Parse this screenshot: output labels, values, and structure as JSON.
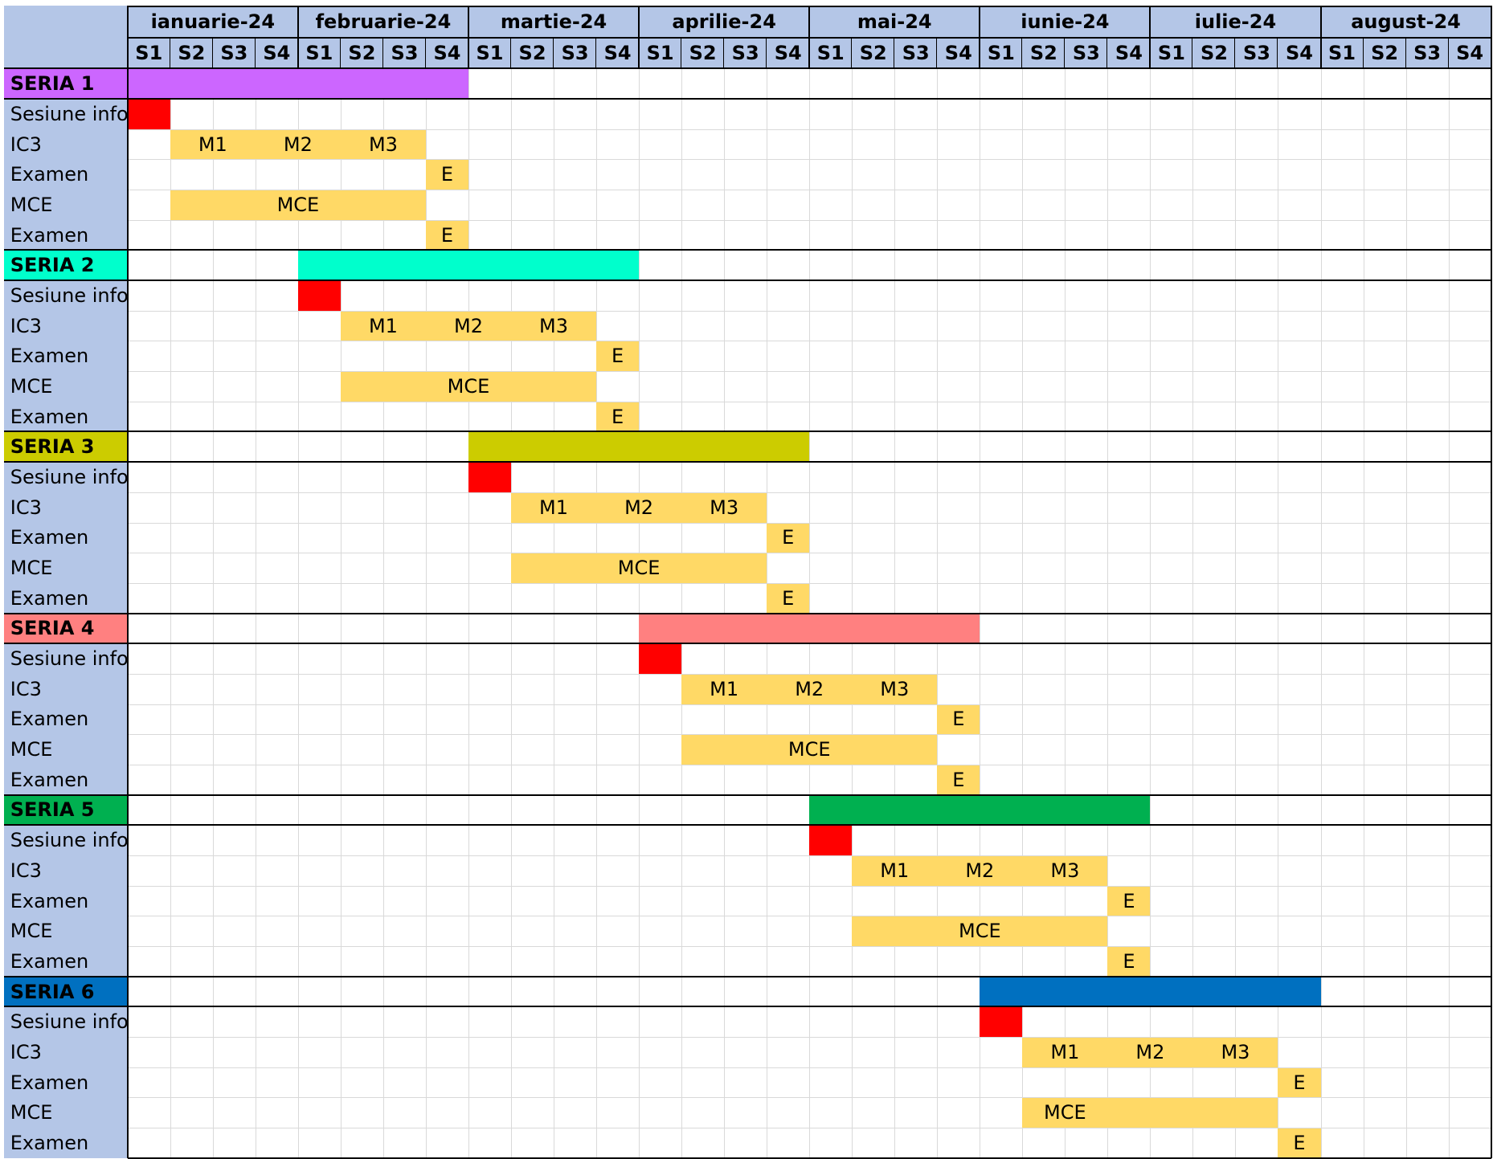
{
  "months": [
    "ianuarie-24",
    "februarie-24",
    "martie-24",
    "aprilie-24",
    "mai-24",
    "iunie-24",
    "iulie-24",
    "august-24"
  ],
  "weeks": [
    "S1",
    "S2",
    "S3",
    "S4"
  ],
  "colors": {
    "header": "#b4c6e7",
    "info_session": "#ff0000",
    "module": "#ffd966"
  },
  "series": [
    {
      "name": "SERIA 1",
      "color": "#cc66ff",
      "start_week": 1,
      "end_week": 8,
      "rows": [
        {
          "label": "Sesiune info",
          "type": "info",
          "start_week": 1,
          "end_week": 1,
          "marks": []
        },
        {
          "label": "IC3",
          "type": "module",
          "start_week": 2,
          "end_week": 7,
          "marks": [
            {
              "text": "M1",
              "week": 2.5
            },
            {
              "text": "M2",
              "week": 4.5
            },
            {
              "text": "M3",
              "week": 6.5
            }
          ]
        },
        {
          "label": "Examen",
          "type": "module",
          "start_week": 8,
          "end_week": 8,
          "marks": [
            {
              "text": "E",
              "week": 8
            }
          ]
        },
        {
          "label": "MCE",
          "type": "module",
          "start_week": 2,
          "end_week": 7,
          "marks": [
            {
              "text": "MCE",
              "week": 4.5
            }
          ]
        },
        {
          "label": "Examen",
          "type": "module",
          "start_week": 8,
          "end_week": 8,
          "marks": [
            {
              "text": "E",
              "week": 8
            }
          ]
        }
      ]
    },
    {
      "name": "SERIA 2",
      "color": "#00ffcc",
      "start_week": 5,
      "end_week": 12,
      "rows": [
        {
          "label": "Sesiune info",
          "type": "info",
          "start_week": 5,
          "end_week": 5,
          "marks": []
        },
        {
          "label": "IC3",
          "type": "module",
          "start_week": 6,
          "end_week": 11,
          "marks": [
            {
              "text": "M1",
              "week": 6.5
            },
            {
              "text": "M2",
              "week": 8.5
            },
            {
              "text": "M3",
              "week": 10.5
            }
          ]
        },
        {
          "label": "Examen",
          "type": "module",
          "start_week": 12,
          "end_week": 12,
          "marks": [
            {
              "text": "E",
              "week": 12
            }
          ]
        },
        {
          "label": "MCE",
          "type": "module",
          "start_week": 6,
          "end_week": 11,
          "marks": [
            {
              "text": "MCE",
              "week": 8.5
            }
          ]
        },
        {
          "label": "Examen",
          "type": "module",
          "start_week": 12,
          "end_week": 12,
          "marks": [
            {
              "text": "E",
              "week": 12
            }
          ]
        }
      ]
    },
    {
      "name": "SERIA 3",
      "color": "#cccc00",
      "start_week": 9,
      "end_week": 16,
      "rows": [
        {
          "label": "Sesiune info",
          "type": "info",
          "start_week": 9,
          "end_week": 9,
          "marks": []
        },
        {
          "label": "IC3",
          "type": "module",
          "start_week": 10,
          "end_week": 15,
          "marks": [
            {
              "text": "M1",
              "week": 10.5
            },
            {
              "text": "M2",
              "week": 12.5
            },
            {
              "text": "M3",
              "week": 14.5
            }
          ]
        },
        {
          "label": "Examen",
          "type": "module",
          "start_week": 16,
          "end_week": 16,
          "marks": [
            {
              "text": "E",
              "week": 16
            }
          ]
        },
        {
          "label": "MCE",
          "type": "module",
          "start_week": 10,
          "end_week": 15,
          "marks": [
            {
              "text": "MCE",
              "week": 12.5
            }
          ]
        },
        {
          "label": "Examen",
          "type": "module",
          "start_week": 16,
          "end_week": 16,
          "marks": [
            {
              "text": "E",
              "week": 16
            }
          ]
        }
      ]
    },
    {
      "name": "SERIA 4",
      "color": "#ff8080",
      "start_week": 13,
      "end_week": 20,
      "rows": [
        {
          "label": "Sesiune info",
          "type": "info",
          "start_week": 13,
          "end_week": 13,
          "marks": []
        },
        {
          "label": "IC3",
          "type": "module",
          "start_week": 14,
          "end_week": 19,
          "marks": [
            {
              "text": "M1",
              "week": 14.5
            },
            {
              "text": "M2",
              "week": 16.5
            },
            {
              "text": "M3",
              "week": 18.5
            }
          ]
        },
        {
          "label": "Examen",
          "type": "module",
          "start_week": 20,
          "end_week": 20,
          "marks": [
            {
              "text": "E",
              "week": 20
            }
          ]
        },
        {
          "label": "MCE",
          "type": "module",
          "start_week": 14,
          "end_week": 19,
          "marks": [
            {
              "text": "MCE",
              "week": 16.5
            }
          ]
        },
        {
          "label": "Examen",
          "type": "module",
          "start_week": 20,
          "end_week": 20,
          "marks": [
            {
              "text": "E",
              "week": 20
            }
          ]
        }
      ]
    },
    {
      "name": "SERIA 5",
      "color": "#00b050",
      "start_week": 17,
      "end_week": 24,
      "rows": [
        {
          "label": "Sesiune info",
          "type": "info",
          "start_week": 17,
          "end_week": 17,
          "marks": []
        },
        {
          "label": "IC3",
          "type": "module",
          "start_week": 18,
          "end_week": 23,
          "marks": [
            {
              "text": "M1",
              "week": 18.5
            },
            {
              "text": "M2",
              "week": 20.5
            },
            {
              "text": "M3",
              "week": 22.5
            }
          ]
        },
        {
          "label": "Examen",
          "type": "module",
          "start_week": 24,
          "end_week": 24,
          "marks": [
            {
              "text": "E",
              "week": 24
            }
          ]
        },
        {
          "label": "MCE",
          "type": "module",
          "start_week": 18,
          "end_week": 23,
          "marks": [
            {
              "text": "MCE",
              "week": 20.5
            }
          ]
        },
        {
          "label": "Examen",
          "type": "module",
          "start_week": 24,
          "end_week": 24,
          "marks": [
            {
              "text": "E",
              "week": 24
            }
          ]
        }
      ]
    },
    {
      "name": "SERIA 6",
      "color": "#0070c0",
      "start_week": 21,
      "end_week": 28,
      "rows": [
        {
          "label": "Sesiune info",
          "type": "info",
          "start_week": 21,
          "end_week": 21,
          "marks": []
        },
        {
          "label": "IC3",
          "type": "module",
          "start_week": 22,
          "end_week": 27,
          "marks": [
            {
              "text": "M1",
              "week": 22.5
            },
            {
              "text": "M2",
              "week": 24.5
            },
            {
              "text": "M3",
              "week": 26.5
            }
          ]
        },
        {
          "label": "Examen",
          "type": "module",
          "start_week": 28,
          "end_week": 28,
          "marks": [
            {
              "text": "E",
              "week": 28
            }
          ]
        },
        {
          "label": "MCE",
          "type": "module",
          "start_week": 22,
          "end_week": 27,
          "marks": [
            {
              "text": "MCE",
              "week": 22.5
            }
          ]
        },
        {
          "label": "Examen",
          "type": "module",
          "start_week": 28,
          "end_week": 28,
          "marks": [
            {
              "text": "E",
              "week": 28
            }
          ]
        }
      ]
    }
  ]
}
